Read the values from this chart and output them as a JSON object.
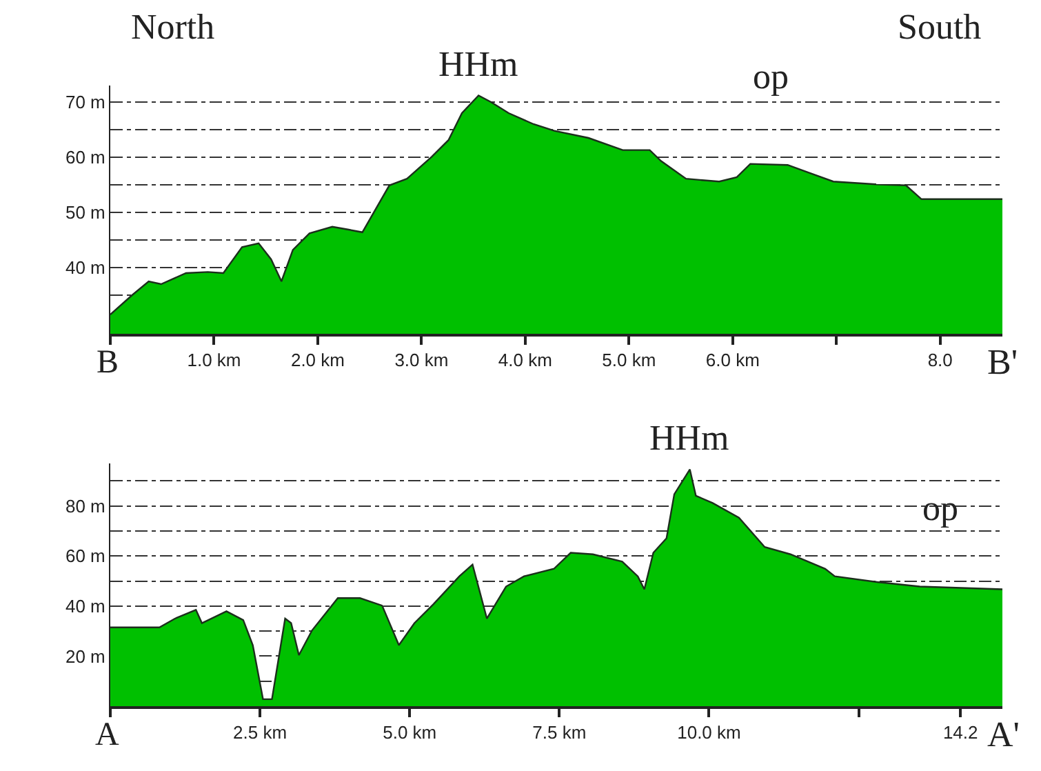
{
  "chart_data": [
    {
      "type": "area",
      "color": "#00c000",
      "grid": "y",
      "x": [
        0,
        0.21,
        0.37,
        0.49,
        0.73,
        0.94,
        1.09,
        1.27,
        1.43,
        1.55,
        1.65,
        1.76,
        1.92,
        2.14,
        2.29,
        2.43,
        2.69,
        2.86,
        3.1,
        3.26,
        3.39,
        3.55,
        3.67,
        3.84,
        4.08,
        4.28,
        4.61,
        4.94,
        5.2,
        5.31,
        5.55,
        5.87,
        6.04,
        6.17,
        6.53,
        6.72,
        6.97,
        7.38,
        7.67,
        7.82,
        8.6
      ],
      "values": [
        31.5,
        35.0,
        37.5,
        37.0,
        39.0,
        39.2,
        39.0,
        43.7,
        44.4,
        41.5,
        37.5,
        43.2,
        46.2,
        47.4,
        46.9,
        46.4,
        54.9,
        56.1,
        60.1,
        63.1,
        68.0,
        71.2,
        70.0,
        68.0,
        66.0,
        64.8,
        63.5,
        61.3,
        61.3,
        59.3,
        56.1,
        55.6,
        56.4,
        58.8,
        58.6,
        57.3,
        55.6,
        55.1,
        54.9,
        52.4,
        52.4
      ],
      "xlim": [
        0,
        8.6
      ],
      "ylim": [
        28,
        73
      ],
      "xticks": [
        {
          "value": 0,
          "label": null
        },
        {
          "value": 1.0,
          "label": "1.0 km"
        },
        {
          "value": 2.0,
          "label": "2.0 km"
        },
        {
          "value": 3.0,
          "label": "3.0 km"
        },
        {
          "value": 4.0,
          "label": "4.0 km"
        },
        {
          "value": 5.0,
          "label": "5.0 km"
        },
        {
          "value": 6.0,
          "label": "6.0 km"
        },
        {
          "value": 7.0,
          "label": null
        },
        {
          "value": 8.0,
          "label": "8.0"
        }
      ],
      "yticks": [
        {
          "value": 35,
          "label": null
        },
        {
          "value": 40,
          "label": "40 m"
        },
        {
          "value": 45,
          "label": null
        },
        {
          "value": 50,
          "label": "50 m"
        },
        {
          "value": 55,
          "label": null
        },
        {
          "value": 60,
          "label": "60 m"
        },
        {
          "value": 65,
          "label": null
        },
        {
          "value": 70,
          "label": "70 m"
        }
      ],
      "annotations": [
        "North",
        "South",
        {
          "text": "HHm",
          "x": 3.55,
          "y": 71.2
        },
        "op",
        {
          "text": "B",
          "x": 0,
          "y": 28
        },
        "B'"
      ]
    },
    {
      "type": "area",
      "color": "#00c000",
      "grid": "y",
      "x": [
        0,
        0.35,
        0.82,
        1.08,
        1.43,
        1.53,
        1.94,
        2.22,
        2.38,
        2.55,
        2.7,
        2.92,
        3.02,
        3.15,
        3.37,
        3.8,
        4.17,
        4.54,
        4.82,
        5.08,
        5.4,
        5.83,
        6.05,
        6.29,
        6.61,
        6.91,
        7.41,
        7.69,
        8.06,
        8.55,
        8.81,
        8.92,
        9.07,
        9.29,
        9.42,
        9.68,
        9.78,
        10.06,
        10.5,
        10.93,
        11.36,
        11.94,
        12.1,
        12.81,
        13.52,
        14.9
      ],
      "values": [
        31.5,
        31.5,
        31.5,
        35.0,
        38.5,
        33.2,
        37.9,
        34.4,
        24.4,
        2.8,
        2.8,
        35.0,
        33.2,
        20.4,
        30.3,
        43.2,
        43.2,
        40.2,
        24.4,
        33.2,
        40.8,
        51.9,
        56.6,
        35.0,
        47.8,
        51.9,
        54.9,
        61.3,
        60.7,
        57.8,
        51.9,
        46.7,
        61.3,
        67.1,
        84.7,
        94.6,
        84.1,
        81.2,
        75.3,
        63.6,
        60.7,
        54.9,
        51.9,
        49.6,
        47.8,
        46.7
      ],
      "xlim": [
        0,
        14.9
      ],
      "ylim": [
        0,
        97
      ],
      "xticks": [
        {
          "value": 0,
          "label": null
        },
        {
          "value": 2.5,
          "label": "2.5 km"
        },
        {
          "value": 5.0,
          "label": "5.0 km"
        },
        {
          "value": 7.5,
          "label": "7.5 km"
        },
        {
          "value": 10.0,
          "label": "10.0 km"
        },
        {
          "value": 12.5,
          "label": null
        },
        {
          "value": 14.2,
          "label": "14.2"
        }
      ],
      "yticks": [
        {
          "value": 10,
          "label": null
        },
        {
          "value": 20,
          "label": "20 m"
        },
        {
          "value": 30,
          "label": null
        },
        {
          "value": 40,
          "label": "40 m"
        },
        {
          "value": 50,
          "label": null
        },
        {
          "value": 60,
          "label": "60 m"
        },
        {
          "value": 70,
          "label": null
        },
        {
          "value": 80,
          "label": "80 m"
        },
        {
          "value": 90,
          "label": null
        }
      ],
      "annotations": [
        {
          "text": "HHm",
          "x": 9.68,
          "y": 94.6
        },
        "op",
        {
          "text": "A",
          "x": 0,
          "y": 0
        },
        "A'"
      ]
    }
  ]
}
